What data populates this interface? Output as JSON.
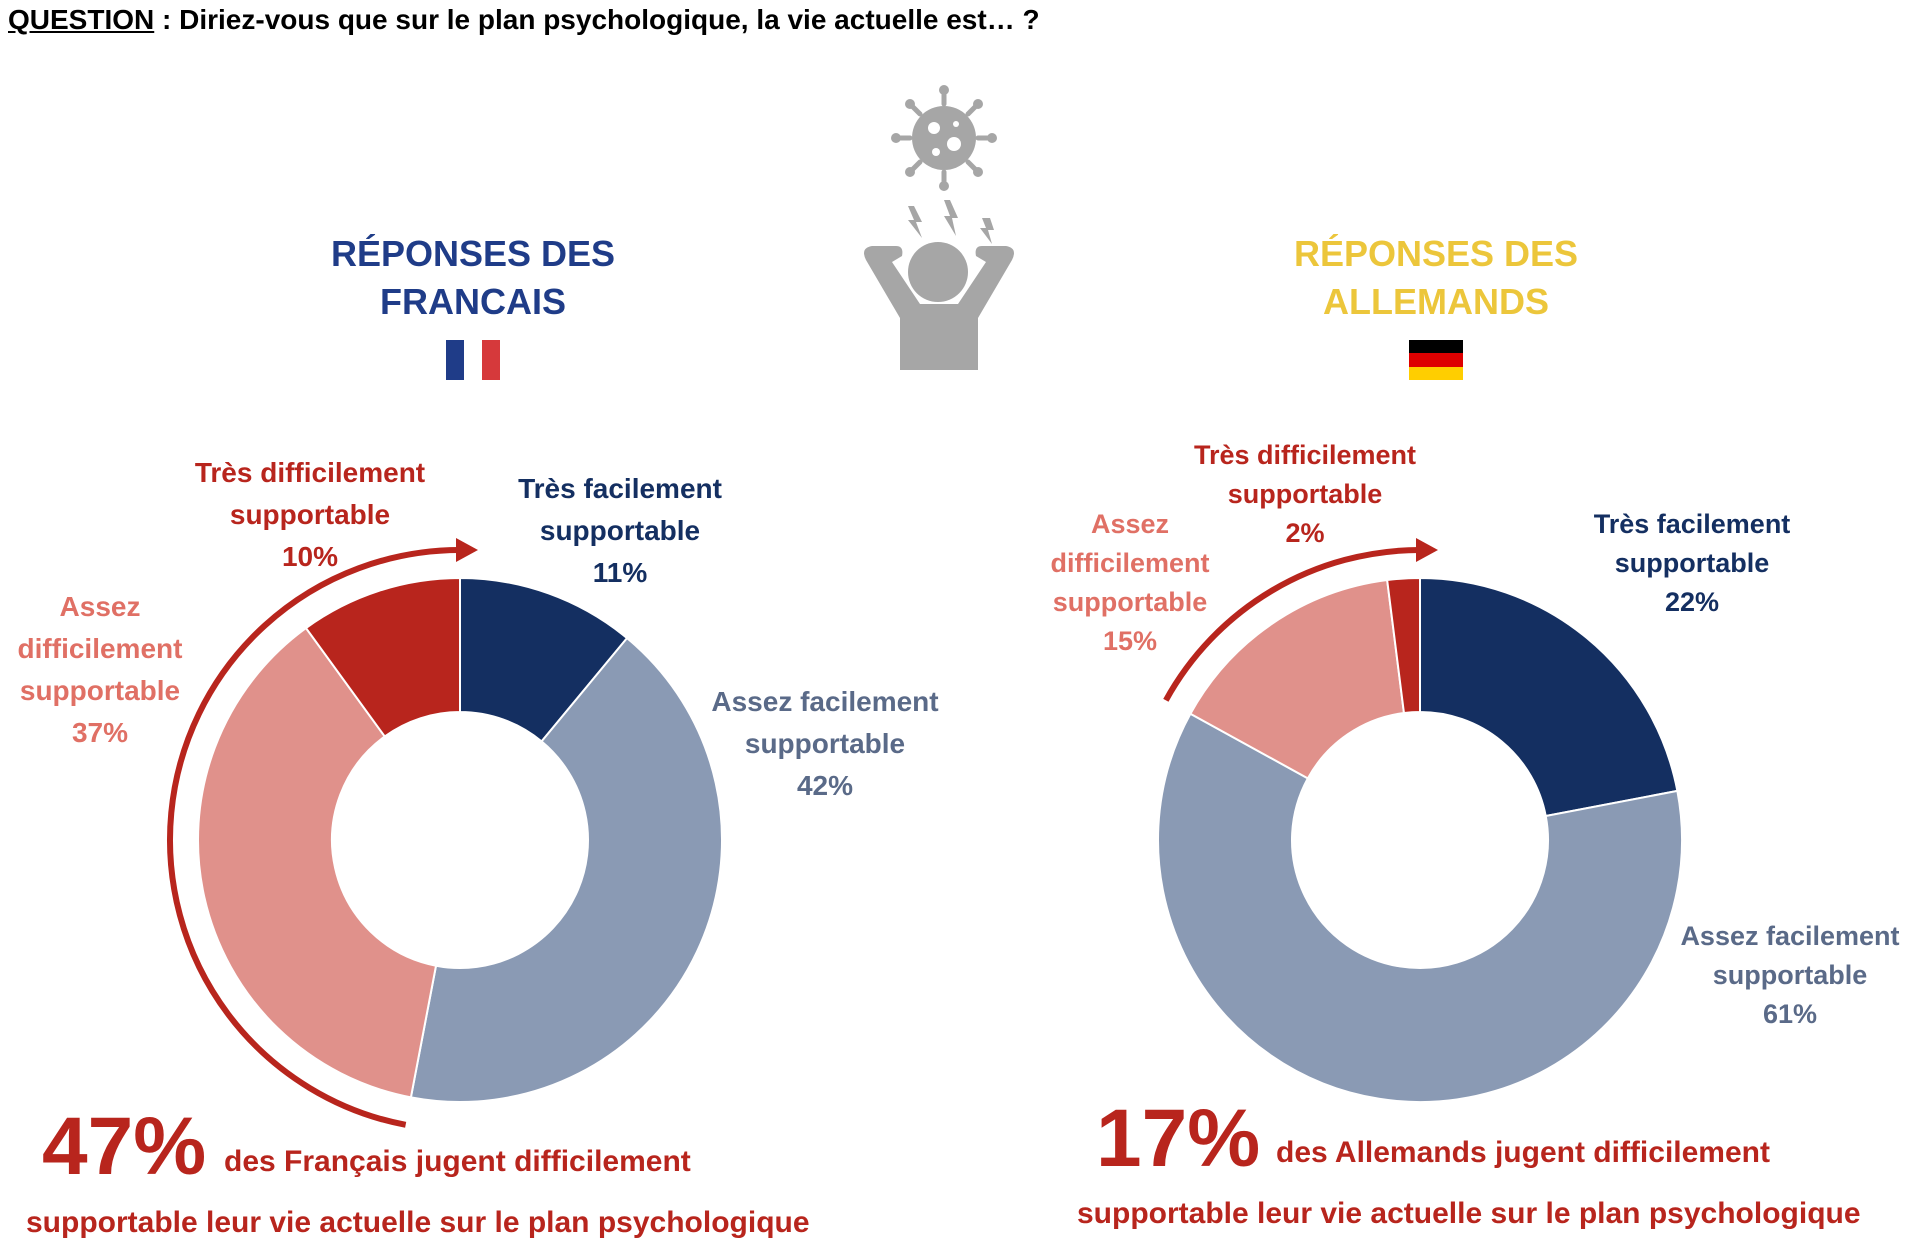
{
  "question": {
    "label": "QUESTION",
    "separator": " : ",
    "text": "Diriez-vous que sur le plan psychologique, la vie actuelle est… ?"
  },
  "illustration": {
    "icons": [
      "virus-icon",
      "stressed-person-icon"
    ]
  },
  "colors": {
    "tres_facilement": "#142f61",
    "assez_facilement": "#8a9ab4",
    "assez_difficilement": "#e0918b",
    "tres_difficilement": "#b8251d",
    "title_fr": "#1f3c88",
    "title_de": "#ecc63b",
    "icon_gray": "#a6a6a6"
  },
  "france": {
    "title_line1": "RÉPONSES DES",
    "title_line2": "FRANCAIS",
    "flag": [
      "#1f3c88",
      "#ffffff",
      "#d6393b"
    ],
    "summary_big": "47%",
    "summary_line1": "des Français jugent difficilement",
    "summary_line2": "supportable leur vie actuelle sur le plan psychologique"
  },
  "germany": {
    "title_line1": "RÉPONSES DES",
    "title_line2": "ALLEMANDS",
    "flag": [
      "#000000",
      "#dd0000",
      "#ffce00"
    ],
    "summary_big": "17%",
    "summary_line1": "des Allemands jugent difficilement",
    "summary_line2": "supportable leur vie actuelle sur le plan psychologique"
  },
  "chart_data": [
    {
      "type": "pie",
      "subtype": "donut",
      "title": "RÉPONSES DES FRANCAIS",
      "categories": [
        "Très facilement supportable",
        "Assez facilement supportable",
        "Assez difficilement supportable",
        "Très difficilement supportable"
      ],
      "values": [
        11,
        42,
        37,
        10
      ],
      "value_labels": [
        "11%",
        "42%",
        "37%",
        "10%"
      ],
      "label_lines": [
        [
          "Très facilement",
          "supportable",
          "11%"
        ],
        [
          "Assez facilement",
          "supportable",
          "42%"
        ],
        [
          "Assez",
          "difficilement",
          "supportable",
          "37%"
        ],
        [
          "Très difficilement",
          "supportable",
          "10%"
        ]
      ],
      "colors": [
        "#142f61",
        "#8a9ab4",
        "#e0918b",
        "#b8251d"
      ],
      "start": "12 o'clock, clockwise"
    },
    {
      "type": "pie",
      "subtype": "donut",
      "title": "RÉPONSES DES ALLEMANDS",
      "categories": [
        "Très facilement supportable",
        "Assez facilement supportable",
        "Assez difficilement supportable",
        "Très difficilement supportable"
      ],
      "values": [
        22,
        61,
        15,
        2
      ],
      "value_labels": [
        "22%",
        "61%",
        "15%",
        "2%"
      ],
      "label_lines": [
        [
          "Très facilement",
          "supportable",
          "22%"
        ],
        [
          "Assez facilement",
          "supportable",
          "61%"
        ],
        [
          "Assez",
          "difficilement",
          "supportable",
          "15%"
        ],
        [
          "Très difficilement",
          "supportable",
          "2%"
        ]
      ],
      "colors": [
        "#142f61",
        "#8a9ab4",
        "#e0918b",
        "#b8251d"
      ],
      "start": "12 o'clock, clockwise"
    }
  ]
}
